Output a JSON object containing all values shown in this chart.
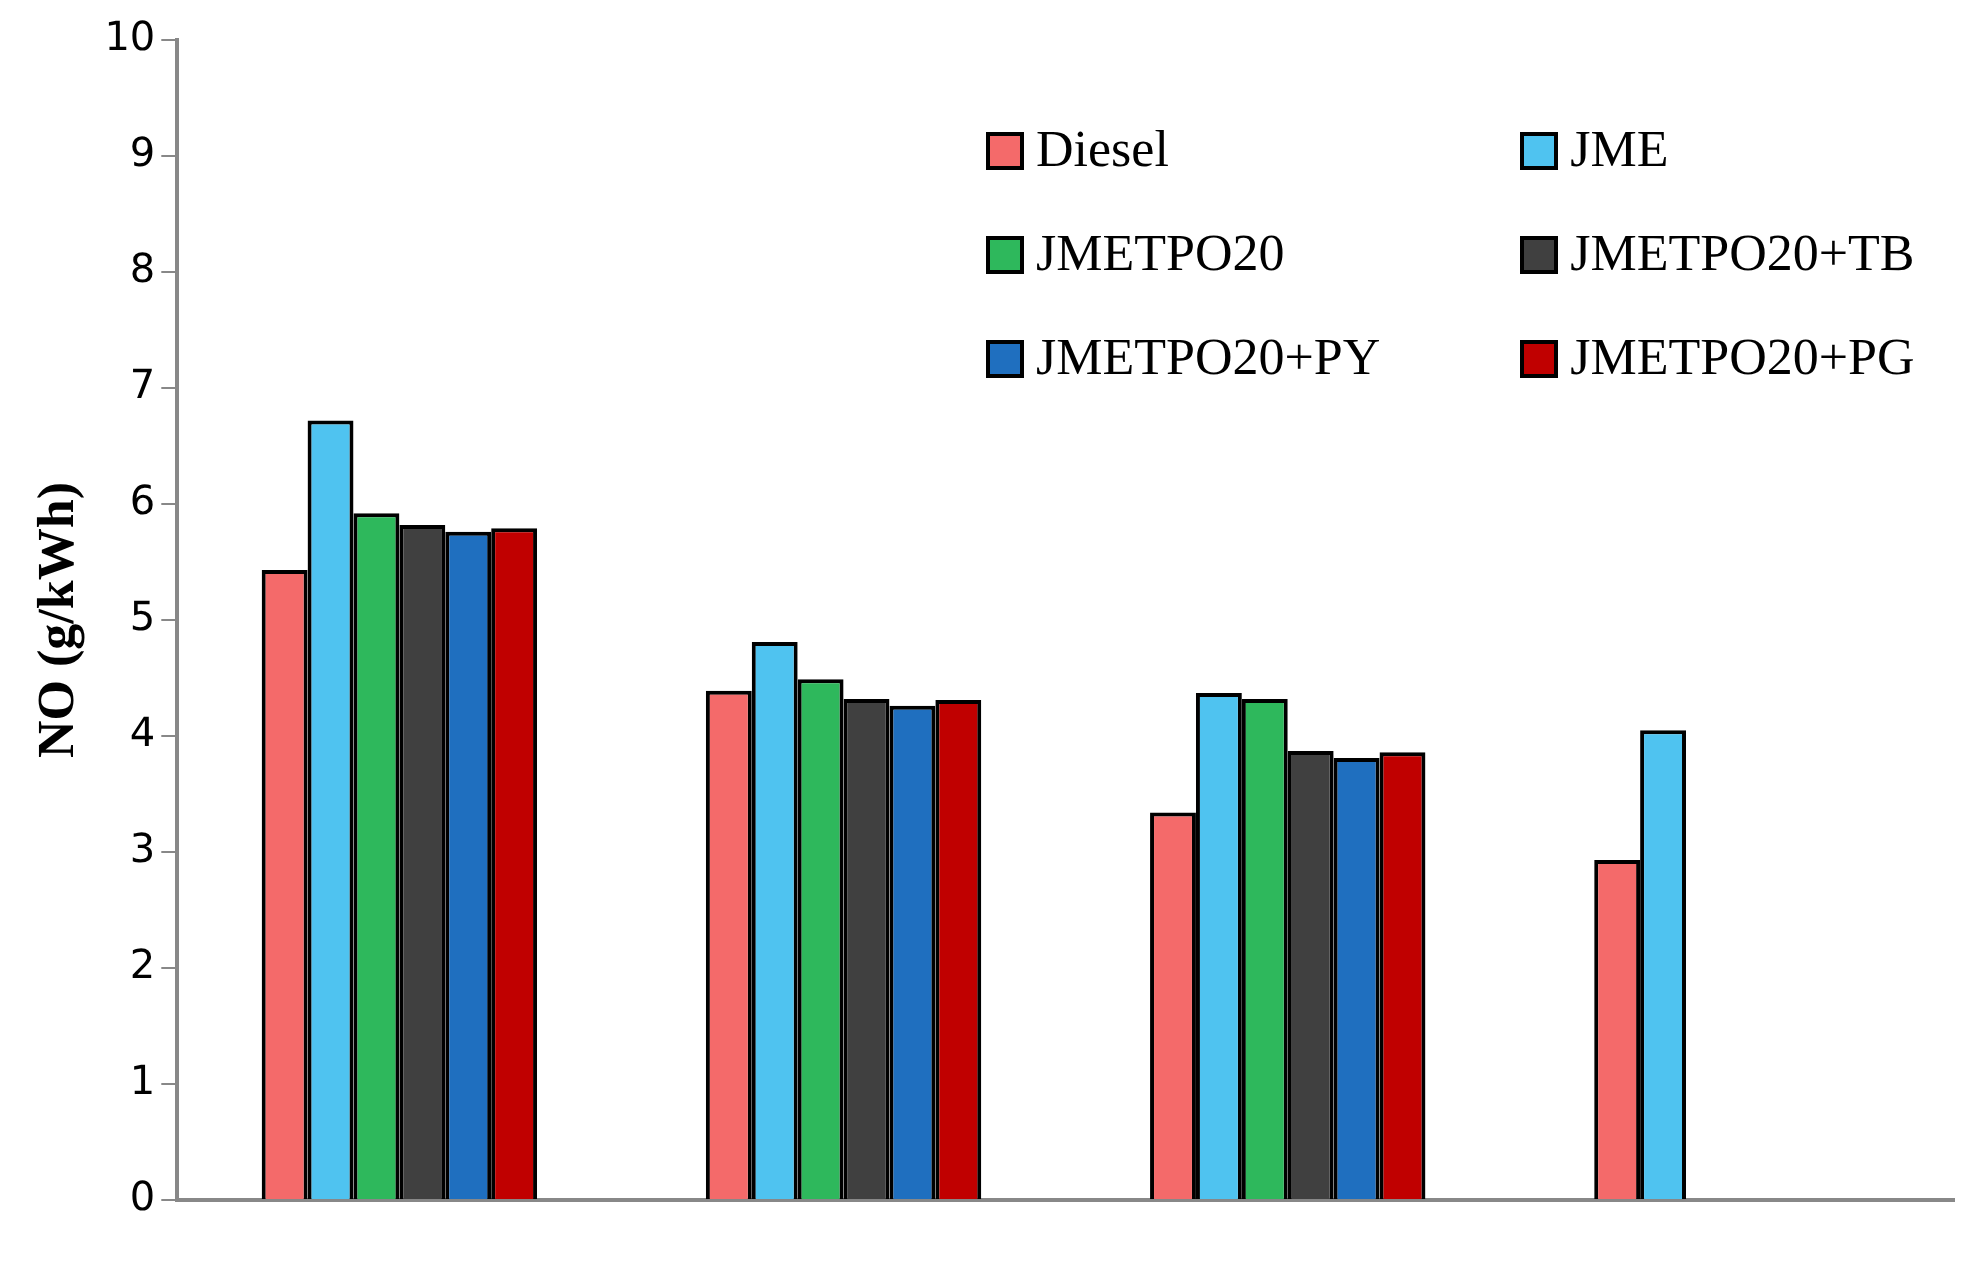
{
  "chart_data": {
    "type": "bar",
    "ylabel": "NO (g/kWh)",
    "categories": [
      null,
      null,
      null,
      null
    ],
    "series": [
      {
        "name": "Diesel",
        "color": "#f46a6a",
        "values": [
          5.43,
          4.39,
          3.34,
          2.93
        ]
      },
      {
        "name": "JME",
        "color": "#4fc3f0",
        "values": [
          6.72,
          4.81,
          4.37,
          4.05
        ]
      },
      {
        "name": "JMETPO20",
        "color": "#2eb85c",
        "values": [
          5.92,
          4.49,
          4.32,
          null
        ]
      },
      {
        "name": "JMETPO20+TB",
        "color": "#404040",
        "values": [
          5.82,
          4.32,
          3.87,
          null
        ]
      },
      {
        "name": "JMETPO20+PY",
        "color": "#1f6fbf",
        "values": [
          5.76,
          4.26,
          3.81,
          null
        ]
      },
      {
        "name": "JMETPO20+PG",
        "color": "#c00000",
        "values": [
          5.79,
          4.31,
          3.86,
          null
        ]
      }
    ],
    "ylim": [
      0,
      10
    ],
    "yticks": [
      0,
      1,
      2,
      3,
      4,
      5,
      6,
      7,
      8,
      9,
      10
    ],
    "grid": false,
    "legend": "top right"
  }
}
